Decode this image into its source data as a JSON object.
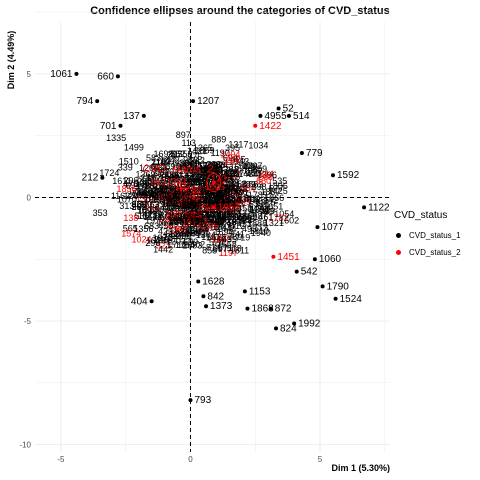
{
  "chart_data": {
    "type": "scatter",
    "title": "Confidence ellipses around the categories of CVD_status",
    "xlabel": "Dim 1 (5.30%)",
    "ylabel": "Dim 2 (4.49%)",
    "xlim": [
      -6.0,
      7.7
    ],
    "ylim": [
      -10.3,
      7.1
    ],
    "xticks": [
      -5,
      0,
      5
    ],
    "yticks": [
      5,
      0,
      -5,
      -10
    ],
    "grid": true,
    "legend": {
      "title": "CVD_status",
      "position": "right"
    },
    "centroid_label": "CVD_status_2",
    "colors": {
      "CVD_status_1": "#000000",
      "CVD_status_2": "#ff0000"
    },
    "series": [
      {
        "name": "CVD_status_1",
        "points": [
          {
            "label": "1061",
            "x": -4.4,
            "y": 5.0
          },
          {
            "label": "660",
            "x": -2.8,
            "y": 4.9
          },
          {
            "label": "794",
            "x": -3.6,
            "y": 3.9
          },
          {
            "label": "1207",
            "x": 0.1,
            "y": 3.9
          },
          {
            "label": "701",
            "x": -2.7,
            "y": 2.9
          },
          {
            "label": "137",
            "x": -1.8,
            "y": 3.3
          },
          {
            "label": "52",
            "x": 3.4,
            "y": 3.6
          },
          {
            "label": "4955",
            "x": 2.7,
            "y": 3.3
          },
          {
            "label": "514",
            "x": 3.8,
            "y": 3.3
          },
          {
            "label": "779",
            "x": 4.3,
            "y": 1.8
          },
          {
            "label": "1592",
            "x": 5.5,
            "y": 0.9
          },
          {
            "label": "1122",
            "x": 6.7,
            "y": -0.4
          },
          {
            "label": "1077",
            "x": 4.9,
            "y": -1.2
          },
          {
            "label": "212",
            "x": -3.4,
            "y": 0.8
          },
          {
            "label": "404",
            "x": -1.5,
            "y": -4.2
          },
          {
            "label": "1373",
            "x": 0.6,
            "y": -4.4
          },
          {
            "label": "1868",
            "x": 2.2,
            "y": -4.5
          },
          {
            "label": "872",
            "x": 3.1,
            "y": -4.5
          },
          {
            "label": "824",
            "x": 3.3,
            "y": -5.3
          },
          {
            "label": "1992",
            "x": 4.0,
            "y": -5.1
          },
          {
            "label": "1790",
            "x": 5.1,
            "y": -3.6
          },
          {
            "label": "1524",
            "x": 5.6,
            "y": -4.1
          },
          {
            "label": "542",
            "x": 4.1,
            "y": -3.0
          },
          {
            "label": "1060",
            "x": 4.8,
            "y": -2.5
          },
          {
            "label": "793",
            "x": 0.0,
            "y": -8.2
          },
          {
            "label": "842",
            "x": 0.5,
            "y": -4.0
          },
          {
            "label": "1628",
            "x": 0.3,
            "y": -3.4
          },
          {
            "label": "1153",
            "x": 2.1,
            "y": -3.8
          }
        ]
      },
      {
        "name": "CVD_status_2",
        "points": [
          {
            "label": "1957",
            "x": 0.9,
            "y": -0.4
          },
          {
            "label": "1451",
            "x": 3.2,
            "y": -2.4
          },
          {
            "label": "1422",
            "x": 2.5,
            "y": 2.9
          }
        ]
      }
    ]
  }
}
